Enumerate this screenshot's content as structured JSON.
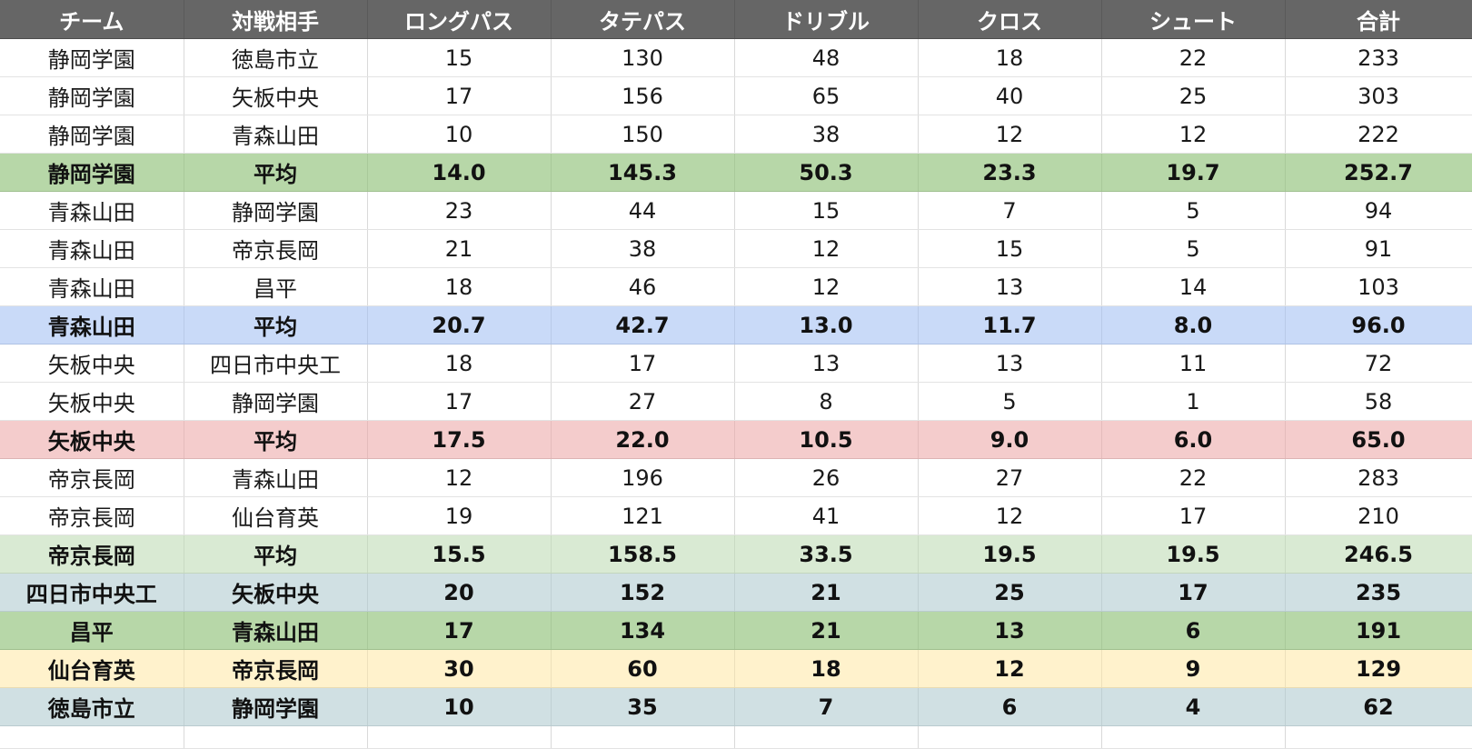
{
  "columns": [
    "チーム",
    "対戦相手",
    "ロングパス",
    "タテパス",
    "ドリブル",
    "クロス",
    "シュート",
    "合計"
  ],
  "colors": {
    "header_bg": "#666666",
    "green": "#b7d7a8",
    "blue": "#c9daf8",
    "red": "#f4cccc",
    "lightgreen": "#d9ead3",
    "grayblue": "#d0e0e3",
    "yellow": "#fff2cc"
  },
  "rows": [
    {
      "cells": [
        "静岡学園",
        "徳島市立",
        "15",
        "130",
        "48",
        "18",
        "22",
        "233"
      ]
    },
    {
      "cells": [
        "静岡学園",
        "矢板中央",
        "17",
        "156",
        "65",
        "40",
        "25",
        "303"
      ]
    },
    {
      "cells": [
        "静岡学園",
        "青森山田",
        "10",
        "150",
        "38",
        "12",
        "12",
        "222"
      ]
    },
    {
      "cells": [
        "静岡学園",
        "平均",
        "14.0",
        "145.3",
        "50.3",
        "23.3",
        "19.7",
        "252.7"
      ]
    },
    {
      "cells": [
        "青森山田",
        "静岡学園",
        "23",
        "44",
        "15",
        "7",
        "5",
        "94"
      ]
    },
    {
      "cells": [
        "青森山田",
        "帝京長岡",
        "21",
        "38",
        "12",
        "15",
        "5",
        "91"
      ]
    },
    {
      "cells": [
        "青森山田",
        "昌平",
        "18",
        "46",
        "12",
        "13",
        "14",
        "103"
      ]
    },
    {
      "cells": [
        "青森山田",
        "平均",
        "20.7",
        "42.7",
        "13.0",
        "11.7",
        "8.0",
        "96.0"
      ]
    },
    {
      "cells": [
        "矢板中央",
        "四日市中央工",
        "18",
        "17",
        "13",
        "13",
        "11",
        "72"
      ]
    },
    {
      "cells": [
        "矢板中央",
        "静岡学園",
        "17",
        "27",
        "8",
        "5",
        "1",
        "58"
      ]
    },
    {
      "cells": [
        "矢板中央",
        "平均",
        "17.5",
        "22.0",
        "10.5",
        "9.0",
        "6.0",
        "65.0"
      ]
    },
    {
      "cells": [
        "帝京長岡",
        "青森山田",
        "12",
        "196",
        "26",
        "27",
        "22",
        "283"
      ]
    },
    {
      "cells": [
        "帝京長岡",
        "仙台育英",
        "19",
        "121",
        "41",
        "12",
        "17",
        "210"
      ]
    },
    {
      "cells": [
        "帝京長岡",
        "平均",
        "15.5",
        "158.5",
        "33.5",
        "19.5",
        "19.5",
        "246.5"
      ]
    },
    {
      "cells": [
        "四日市中央工",
        "矢板中央",
        "20",
        "152",
        "21",
        "25",
        "17",
        "235"
      ]
    },
    {
      "cells": [
        "昌平",
        "青森山田",
        "17",
        "134",
        "21",
        "13",
        "6",
        "191"
      ]
    },
    {
      "cells": [
        "仙台育英",
        "帝京長岡",
        "30",
        "60",
        "18",
        "12",
        "9",
        "129"
      ]
    },
    {
      "cells": [
        "徳島市立",
        "静岡学園",
        "10",
        "35",
        "7",
        "6",
        "4",
        "62"
      ]
    }
  ]
}
